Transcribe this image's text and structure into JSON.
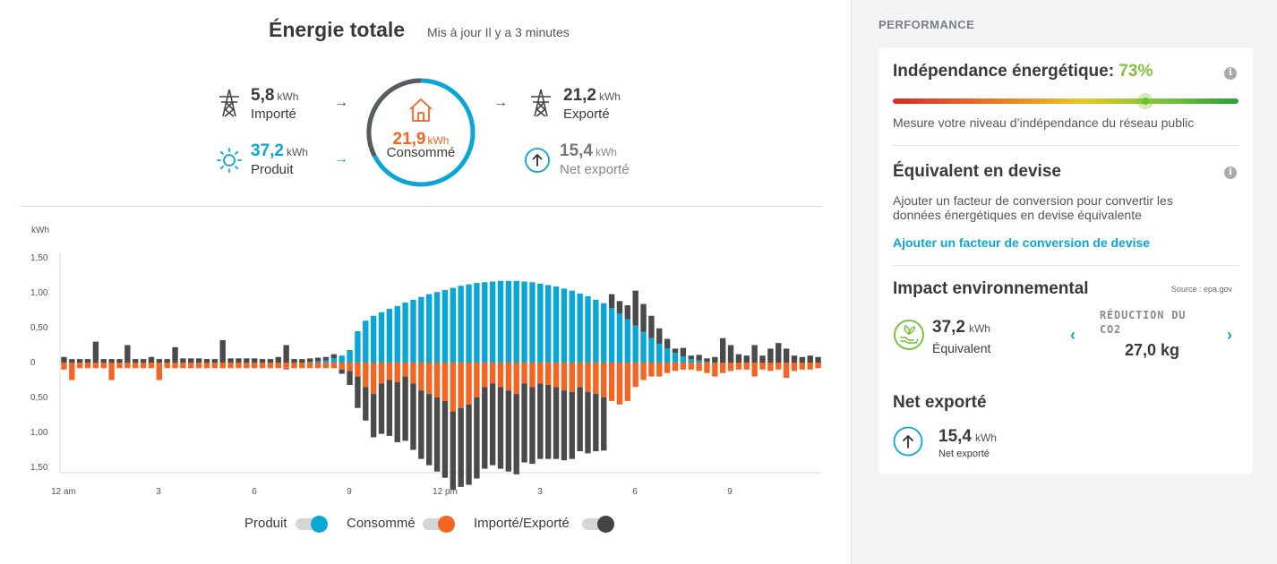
{
  "header": {
    "title": "Énergie totale",
    "subtitle": "Mis à jour Il y a 3 minutes"
  },
  "metrics": {
    "imported": {
      "value": "5,8",
      "unit": "kWh",
      "label": "Importé"
    },
    "produced": {
      "value": "37,2",
      "unit": "kWh",
      "label": "Produit"
    },
    "consumed": {
      "value": "21,9",
      "unit": "kWh",
      "label": "Consommé"
    },
    "exported": {
      "value": "21,2",
      "unit": "kWh",
      "label": "Exporté"
    },
    "net_exported": {
      "value": "15,4",
      "unit": "kWh",
      "label": "Net exporté"
    }
  },
  "legend": {
    "produced": "Produit",
    "consumed": "Consommé",
    "import_export": "Importé/Exporté"
  },
  "colors": {
    "produced": "#0aa6d6",
    "consumed": "#f26522",
    "grid": "#4a4a4a",
    "accent_green": "#7cc33a"
  },
  "chart_data": {
    "type": "bar",
    "ylabel": "kWh",
    "ylim": [
      -1.5,
      1.5
    ],
    "y_tick_labels": [
      "1,50",
      "1,00",
      "0,50",
      "0",
      "0,50",
      "1,00",
      "1,50"
    ],
    "x_tick_labels": [
      "12 am",
      "3",
      "6",
      "9",
      "12 pm",
      "3",
      "6",
      "9"
    ],
    "series": [
      {
        "name": "Produit",
        "values": [
          0,
          0,
          0,
          0,
          0,
          0,
          0,
          0,
          0,
          0,
          0,
          0,
          0,
          0,
          0,
          0,
          0,
          0,
          0,
          0,
          0,
          0,
          0,
          0,
          0,
          0,
          0,
          0,
          0,
          0,
          0,
          0.01,
          0.02,
          0.03,
          0.06,
          0.1,
          0.18,
          0.45,
          0.6,
          0.67,
          0.72,
          0.77,
          0.81,
          0.86,
          0.9,
          0.94,
          0.98,
          1.01,
          1.04,
          1.07,
          1.1,
          1.12,
          1.14,
          1.15,
          1.16,
          1.17,
          1.17,
          1.17,
          1.16,
          1.15,
          1.13,
          1.11,
          1.09,
          1.06,
          1.03,
          0.99,
          0.95,
          0.9,
          0.85,
          0.78,
          0.7,
          0.62,
          0.53,
          0.44,
          0.35,
          0.27,
          0.2,
          0.14,
          0.09,
          0.05,
          0.03,
          0.01,
          0,
          0,
          0,
          0,
          0,
          0,
          0,
          0,
          0,
          0,
          0,
          0,
          0,
          0
        ]
      },
      {
        "name": "Consommé",
        "values": [
          -0.1,
          -0.25,
          -0.08,
          -0.08,
          -0.08,
          -0.08,
          -0.25,
          -0.08,
          -0.08,
          -0.08,
          -0.08,
          -0.08,
          -0.25,
          -0.08,
          -0.08,
          -0.08,
          -0.08,
          -0.08,
          -0.08,
          -0.08,
          -0.08,
          -0.08,
          -0.08,
          -0.08,
          -0.08,
          -0.08,
          -0.08,
          -0.08,
          -0.1,
          -0.08,
          -0.08,
          -0.08,
          -0.08,
          -0.08,
          -0.08,
          -0.1,
          -0.12,
          -0.2,
          -0.35,
          -0.45,
          -0.3,
          -0.25,
          -0.28,
          -0.2,
          -0.3,
          -0.4,
          -0.45,
          -0.5,
          -0.55,
          -0.7,
          -0.65,
          -0.6,
          -0.5,
          -0.35,
          -0.3,
          -0.35,
          -0.4,
          -0.45,
          -0.3,
          -0.35,
          -0.3,
          -0.32,
          -0.35,
          -0.4,
          -0.42,
          -0.35,
          -0.42,
          -0.45,
          -0.5,
          -0.55,
          -0.6,
          -0.55,
          -0.35,
          -0.25,
          -0.2,
          -0.2,
          -0.15,
          -0.12,
          -0.1,
          -0.1,
          -0.12,
          -0.15,
          -0.2,
          -0.15,
          -0.12,
          -0.1,
          -0.1,
          -0.2,
          -0.1,
          -0.12,
          -0.1,
          -0.22,
          -0.12,
          -0.1,
          -0.1,
          -0.08
        ]
      },
      {
        "name": "Importé/Exporté",
        "values": [
          0.08,
          0.05,
          0.05,
          0.05,
          0.3,
          0.05,
          0.05,
          0.05,
          0.25,
          0.05,
          0.05,
          0.08,
          0.05,
          0.05,
          0.22,
          0.06,
          0.06,
          0.06,
          0.05,
          0.05,
          0.32,
          0.06,
          0.06,
          0.06,
          0.06,
          0.05,
          0.05,
          0.08,
          0.25,
          0.05,
          0.05,
          0.05,
          0.05,
          0.05,
          0.06,
          -0.06,
          -0.2,
          -0.45,
          -0.48,
          -0.62,
          -0.72,
          -0.8,
          -0.86,
          -0.92,
          -0.95,
          -0.98,
          -1.02,
          -1.06,
          -1.1,
          -1.12,
          -1.13,
          -1.15,
          -1.16,
          -1.17,
          -1.17,
          -1.17,
          -1.16,
          -1.15,
          -1.13,
          -1.1,
          -1.08,
          -1.06,
          -1.03,
          -1.0,
          -0.96,
          -0.92,
          -0.88,
          -0.82,
          -0.76,
          0.2,
          0.18,
          0.2,
          0.5,
          0.4,
          0.32,
          0.22,
          0.14,
          0.06,
          0.12,
          0.05,
          0.08,
          0.05,
          0.08,
          0.35,
          0.25,
          0.12,
          0.1,
          0.25,
          0.1,
          0.2,
          0.28,
          0.2,
          0.1,
          0.08,
          0.1,
          0.08
        ]
      }
    ]
  },
  "performance": {
    "title": "PERFORMANCE",
    "independence": {
      "label": "Indépendance énergétique:",
      "value": "73%",
      "value_fraction": 0.73,
      "description": "Mesure votre niveau d’indépendance du réseau public"
    },
    "currency": {
      "title": "Équivalent en devise",
      "text_line1": "Ajouter un facteur de conversion pour convertir les",
      "text_line2": "données énergétiques en devise équivalente",
      "link": "Ajouter un facteur de conversion de devise"
    },
    "environment": {
      "title": "Impact environnemental",
      "source": "Source : epa.gov",
      "value": "37,2",
      "unit": "kWh",
      "value_label": "Équivalent",
      "reduction_label_line1": "RÉDUCTION DU",
      "reduction_label_line2": "CO2",
      "reduction_value": "27,0 kg"
    },
    "net_exported": {
      "title": "Net exporté",
      "value": "15,4",
      "unit": "kWh",
      "label": "Net exporté"
    }
  }
}
